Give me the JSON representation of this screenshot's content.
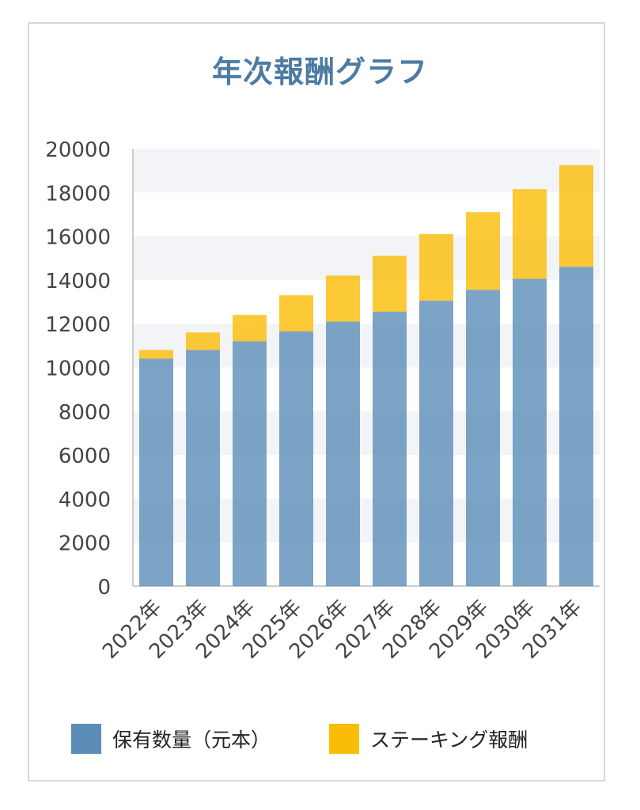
{
  "chart_data": {
    "type": "bar",
    "stacked": true,
    "title": "年次報酬グラフ",
    "categories": [
      "2022年",
      "2023年",
      "2024年",
      "2025年",
      "2026年",
      "2027年",
      "2028年",
      "2029年",
      "2030年",
      "2031年"
    ],
    "series": [
      {
        "name": "保有数量（元本）",
        "color": "#5b8db8",
        "values": [
          10400,
          10800,
          11200,
          11650,
          12100,
          12550,
          13050,
          13550,
          14050,
          14600
        ]
      },
      {
        "name": "ステーキング報酬",
        "color": "#fbbc05",
        "values": [
          400,
          800,
          1200,
          1650,
          2100,
          2550,
          3050,
          3550,
          4100,
          4650
        ]
      }
    ],
    "ylim": [
      0,
      20000
    ],
    "yticks": [
      0,
      2000,
      4000,
      6000,
      8000,
      10000,
      12000,
      14000,
      16000,
      18000,
      20000
    ],
    "grid": "alternating horizontal bands",
    "legend_position": "bottom"
  }
}
